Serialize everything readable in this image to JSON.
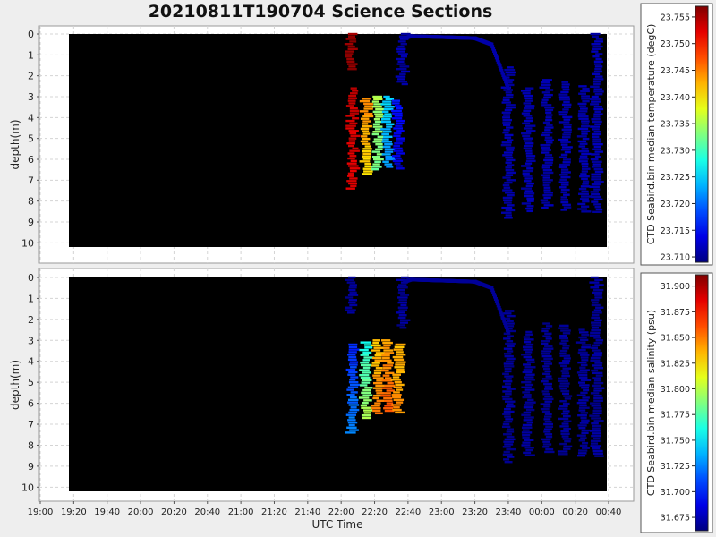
{
  "title": "20210811T190704 Science Sections",
  "colors": {
    "background": "#eeeeee",
    "plot_bg": "#000000",
    "low_color": "#00008f",
    "high_color": "#8f0000"
  },
  "chart_data": [
    {
      "type": "heatmap",
      "title": "",
      "xlabel": "",
      "ylabel": "depth(m)",
      "xlim": [
        "19:07",
        "00:40"
      ],
      "ylim": [
        10.2,
        0
      ],
      "y_inverted": true,
      "yticks": [
        "0",
        "1",
        "2",
        "3",
        "4",
        "5",
        "6",
        "7",
        "8",
        "9",
        "10"
      ],
      "grid": true,
      "colorbar": {
        "label": "CTD Seabird.bin median temperature (degC)",
        "min": 23.709,
        "max": 23.757,
        "ticks": [
          "23.710",
          "23.715",
          "23.720",
          "23.725",
          "23.730",
          "23.735",
          "23.740",
          "23.745",
          "23.750",
          "23.755"
        ],
        "colormap": "jet"
      },
      "profiles": [
        {
          "t": "22:06",
          "depth": [
            0,
            1.8
          ],
          "value_top": 23.756,
          "value_bottom": 23.756
        },
        {
          "t": "22:07",
          "depth": [
            2.6,
            7.5
          ],
          "value_top": 23.754,
          "value_bottom": 23.752
        },
        {
          "t": "22:15",
          "depth": [
            3.1,
            6.8
          ],
          "value_top": 23.745,
          "value_bottom": 23.74
        },
        {
          "t": "22:22",
          "depth": [
            3.0,
            6.6
          ],
          "value_top": 23.735,
          "value_bottom": 23.732
        },
        {
          "t": "22:28",
          "depth": [
            3.0,
            6.4
          ],
          "value_top": 23.725,
          "value_bottom": 23.722
        },
        {
          "t": "22:34",
          "depth": [
            3.2,
            6.5
          ],
          "value_top": 23.716,
          "value_bottom": 23.713
        },
        {
          "t": "22:37",
          "depth": [
            0,
            2.5
          ],
          "value_top": 23.711,
          "value_bottom": 23.711
        },
        {
          "t": "23:40",
          "depth": [
            1.6,
            8.8
          ],
          "value_top": 23.711,
          "value_bottom": 23.711
        },
        {
          "t": "23:52",
          "depth": [
            2.6,
            8.5
          ],
          "value_top": 23.711,
          "value_bottom": 23.711
        },
        {
          "t": "00:03",
          "depth": [
            2.2,
            8.4
          ],
          "value_top": 23.711,
          "value_bottom": 23.711
        },
        {
          "t": "00:14",
          "depth": [
            2.3,
            8.5
          ],
          "value_top": 23.711,
          "value_bottom": 23.711
        },
        {
          "t": "00:25",
          "depth": [
            2.5,
            8.6
          ],
          "value_top": 23.711,
          "value_bottom": 23.711
        },
        {
          "t": "00:33",
          "depth": [
            0,
            8.6
          ],
          "value_top": 23.711,
          "value_bottom": 23.711
        }
      ],
      "surface_track": {
        "t": [
          "22:38",
          "22:42",
          "23:20",
          "23:30",
          "23:40"
        ],
        "depth": [
          0.2,
          0.1,
          0.2,
          0.5,
          2.6
        ],
        "value": 23.711
      }
    },
    {
      "type": "heatmap",
      "title": "",
      "xlabel": "UTC Time",
      "ylabel": "depth(m)",
      "xlim": [
        "19:07",
        "00:40"
      ],
      "ylim": [
        10.2,
        0
      ],
      "y_inverted": true,
      "xticks": [
        "19:00",
        "19:20",
        "19:40",
        "20:00",
        "20:20",
        "20:40",
        "21:00",
        "21:20",
        "21:40",
        "22:00",
        "22:20",
        "22:40",
        "23:00",
        "23:20",
        "23:40",
        "00:00",
        "00:20",
        "00:40"
      ],
      "yticks": [
        "0",
        "1",
        "2",
        "3",
        "4",
        "5",
        "6",
        "7",
        "8",
        "9",
        "10"
      ],
      "grid": true,
      "colorbar": {
        "label": "CTD Seabird.bin median salinity (psu)",
        "min": 31.662,
        "max": 31.911,
        "ticks": [
          "31.675",
          "31.700",
          "31.725",
          "31.750",
          "31.775",
          "31.800",
          "31.825",
          "31.850",
          "31.875",
          "31.900"
        ],
        "colormap": "jet"
      },
      "profiles": [
        {
          "t": "22:06",
          "depth": [
            0,
            1.8
          ],
          "value_top": 31.668,
          "value_bottom": 31.668
        },
        {
          "t": "22:07",
          "depth": [
            3.2,
            7.5
          ],
          "value_top": 31.7,
          "value_bottom": 31.73
        },
        {
          "t": "22:15",
          "depth": [
            3.1,
            6.8
          ],
          "value_top": 31.76,
          "value_bottom": 31.8
        },
        {
          "t": "22:22",
          "depth": [
            3.0,
            6.6
          ],
          "value_top": 31.83,
          "value_bottom": 31.85
        },
        {
          "t": "22:28",
          "depth": [
            3.0,
            6.4
          ],
          "value_top": 31.84,
          "value_bottom": 31.86
        },
        {
          "t": "22:34",
          "depth": [
            3.2,
            6.5
          ],
          "value_top": 31.835,
          "value_bottom": 31.845
        },
        {
          "t": "22:37",
          "depth": [
            0,
            2.5
          ],
          "value_top": 31.668,
          "value_bottom": 31.668
        },
        {
          "t": "23:40",
          "depth": [
            1.6,
            8.8
          ],
          "value_top": 31.668,
          "value_bottom": 31.668
        },
        {
          "t": "23:52",
          "depth": [
            2.6,
            8.5
          ],
          "value_top": 31.668,
          "value_bottom": 31.668
        },
        {
          "t": "00:03",
          "depth": [
            2.2,
            8.4
          ],
          "value_top": 31.668,
          "value_bottom": 31.668
        },
        {
          "t": "00:14",
          "depth": [
            2.3,
            8.5
          ],
          "value_top": 31.668,
          "value_bottom": 31.668
        },
        {
          "t": "00:25",
          "depth": [
            2.5,
            8.6
          ],
          "value_top": 31.668,
          "value_bottom": 31.668
        },
        {
          "t": "00:33",
          "depth": [
            0,
            8.6
          ],
          "value_top": 31.668,
          "value_bottom": 31.668
        }
      ],
      "surface_track": {
        "t": [
          "22:38",
          "22:42",
          "23:20",
          "23:30",
          "23:40"
        ],
        "depth": [
          0.2,
          0.1,
          0.2,
          0.5,
          2.6
        ],
        "value": 31.668
      }
    }
  ]
}
